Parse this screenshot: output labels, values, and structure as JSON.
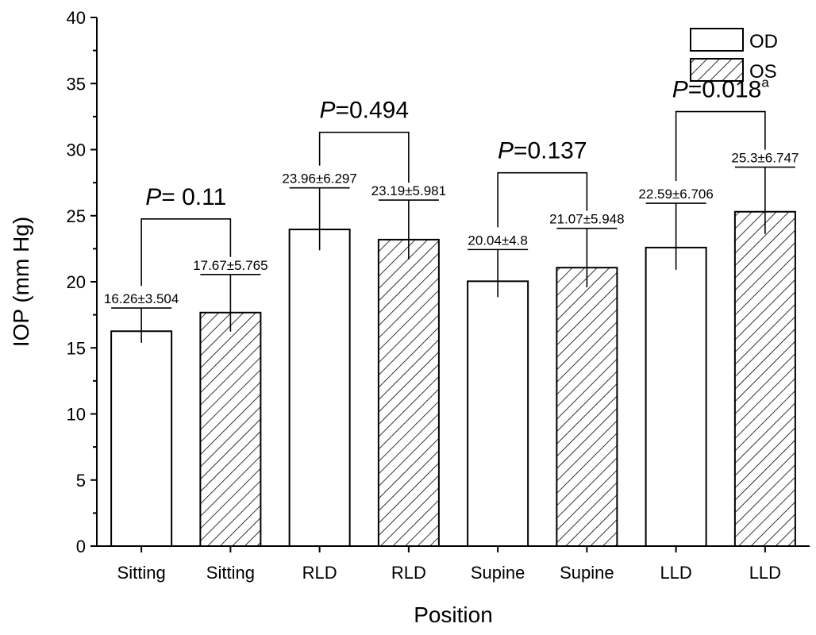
{
  "chart_data": {
    "type": "bar",
    "categories": [
      "Sitting",
      "Sitting",
      "RLD",
      "RLD",
      "Supine",
      "Supine",
      "LLD",
      "LLD"
    ],
    "values": [
      16.26,
      17.67,
      23.96,
      23.19,
      20.04,
      21.07,
      22.59,
      25.3
    ],
    "errors": [
      3.504,
      5.765,
      6.297,
      5.981,
      4.8,
      5.948,
      6.706,
      6.747
    ],
    "bar_series": [
      "OD",
      "OS",
      "OD",
      "OS",
      "OD",
      "OS",
      "OD",
      "OS"
    ],
    "data_labels": [
      "16.26±3.504",
      "17.67±5.765",
      "23.96±6.297",
      "23.19±5.981",
      "20.04±4.8",
      "21.07±5.948",
      "22.59±6.706",
      "25.3±6.747"
    ],
    "series": [
      {
        "name": "OD",
        "fill": "open",
        "color": "#ffffff"
      },
      {
        "name": "OS",
        "fill": "hatched",
        "color": "#000000"
      }
    ],
    "comparisons": [
      {
        "pair": [
          0,
          1
        ],
        "p_prefix": "P",
        "p_text": "= 0.11",
        "p_sup": ""
      },
      {
        "pair": [
          2,
          3
        ],
        "p_prefix": "P",
        "p_text": "=0.494",
        "p_sup": ""
      },
      {
        "pair": [
          4,
          5
        ],
        "p_prefix": "P",
        "p_text": "=0.137",
        "p_sup": ""
      },
      {
        "pair": [
          6,
          7
        ],
        "p_prefix": "P",
        "p_text": "=0.018",
        "p_sup": "a"
      }
    ],
    "title": "",
    "xlabel": "Position",
    "ylabel": "IOP (mm Hg)",
    "ylim": [
      0,
      40
    ],
    "yticks": [
      0,
      5,
      10,
      15,
      20,
      25,
      30,
      35,
      40
    ],
    "legend_position": "top-right",
    "grid": false
  }
}
